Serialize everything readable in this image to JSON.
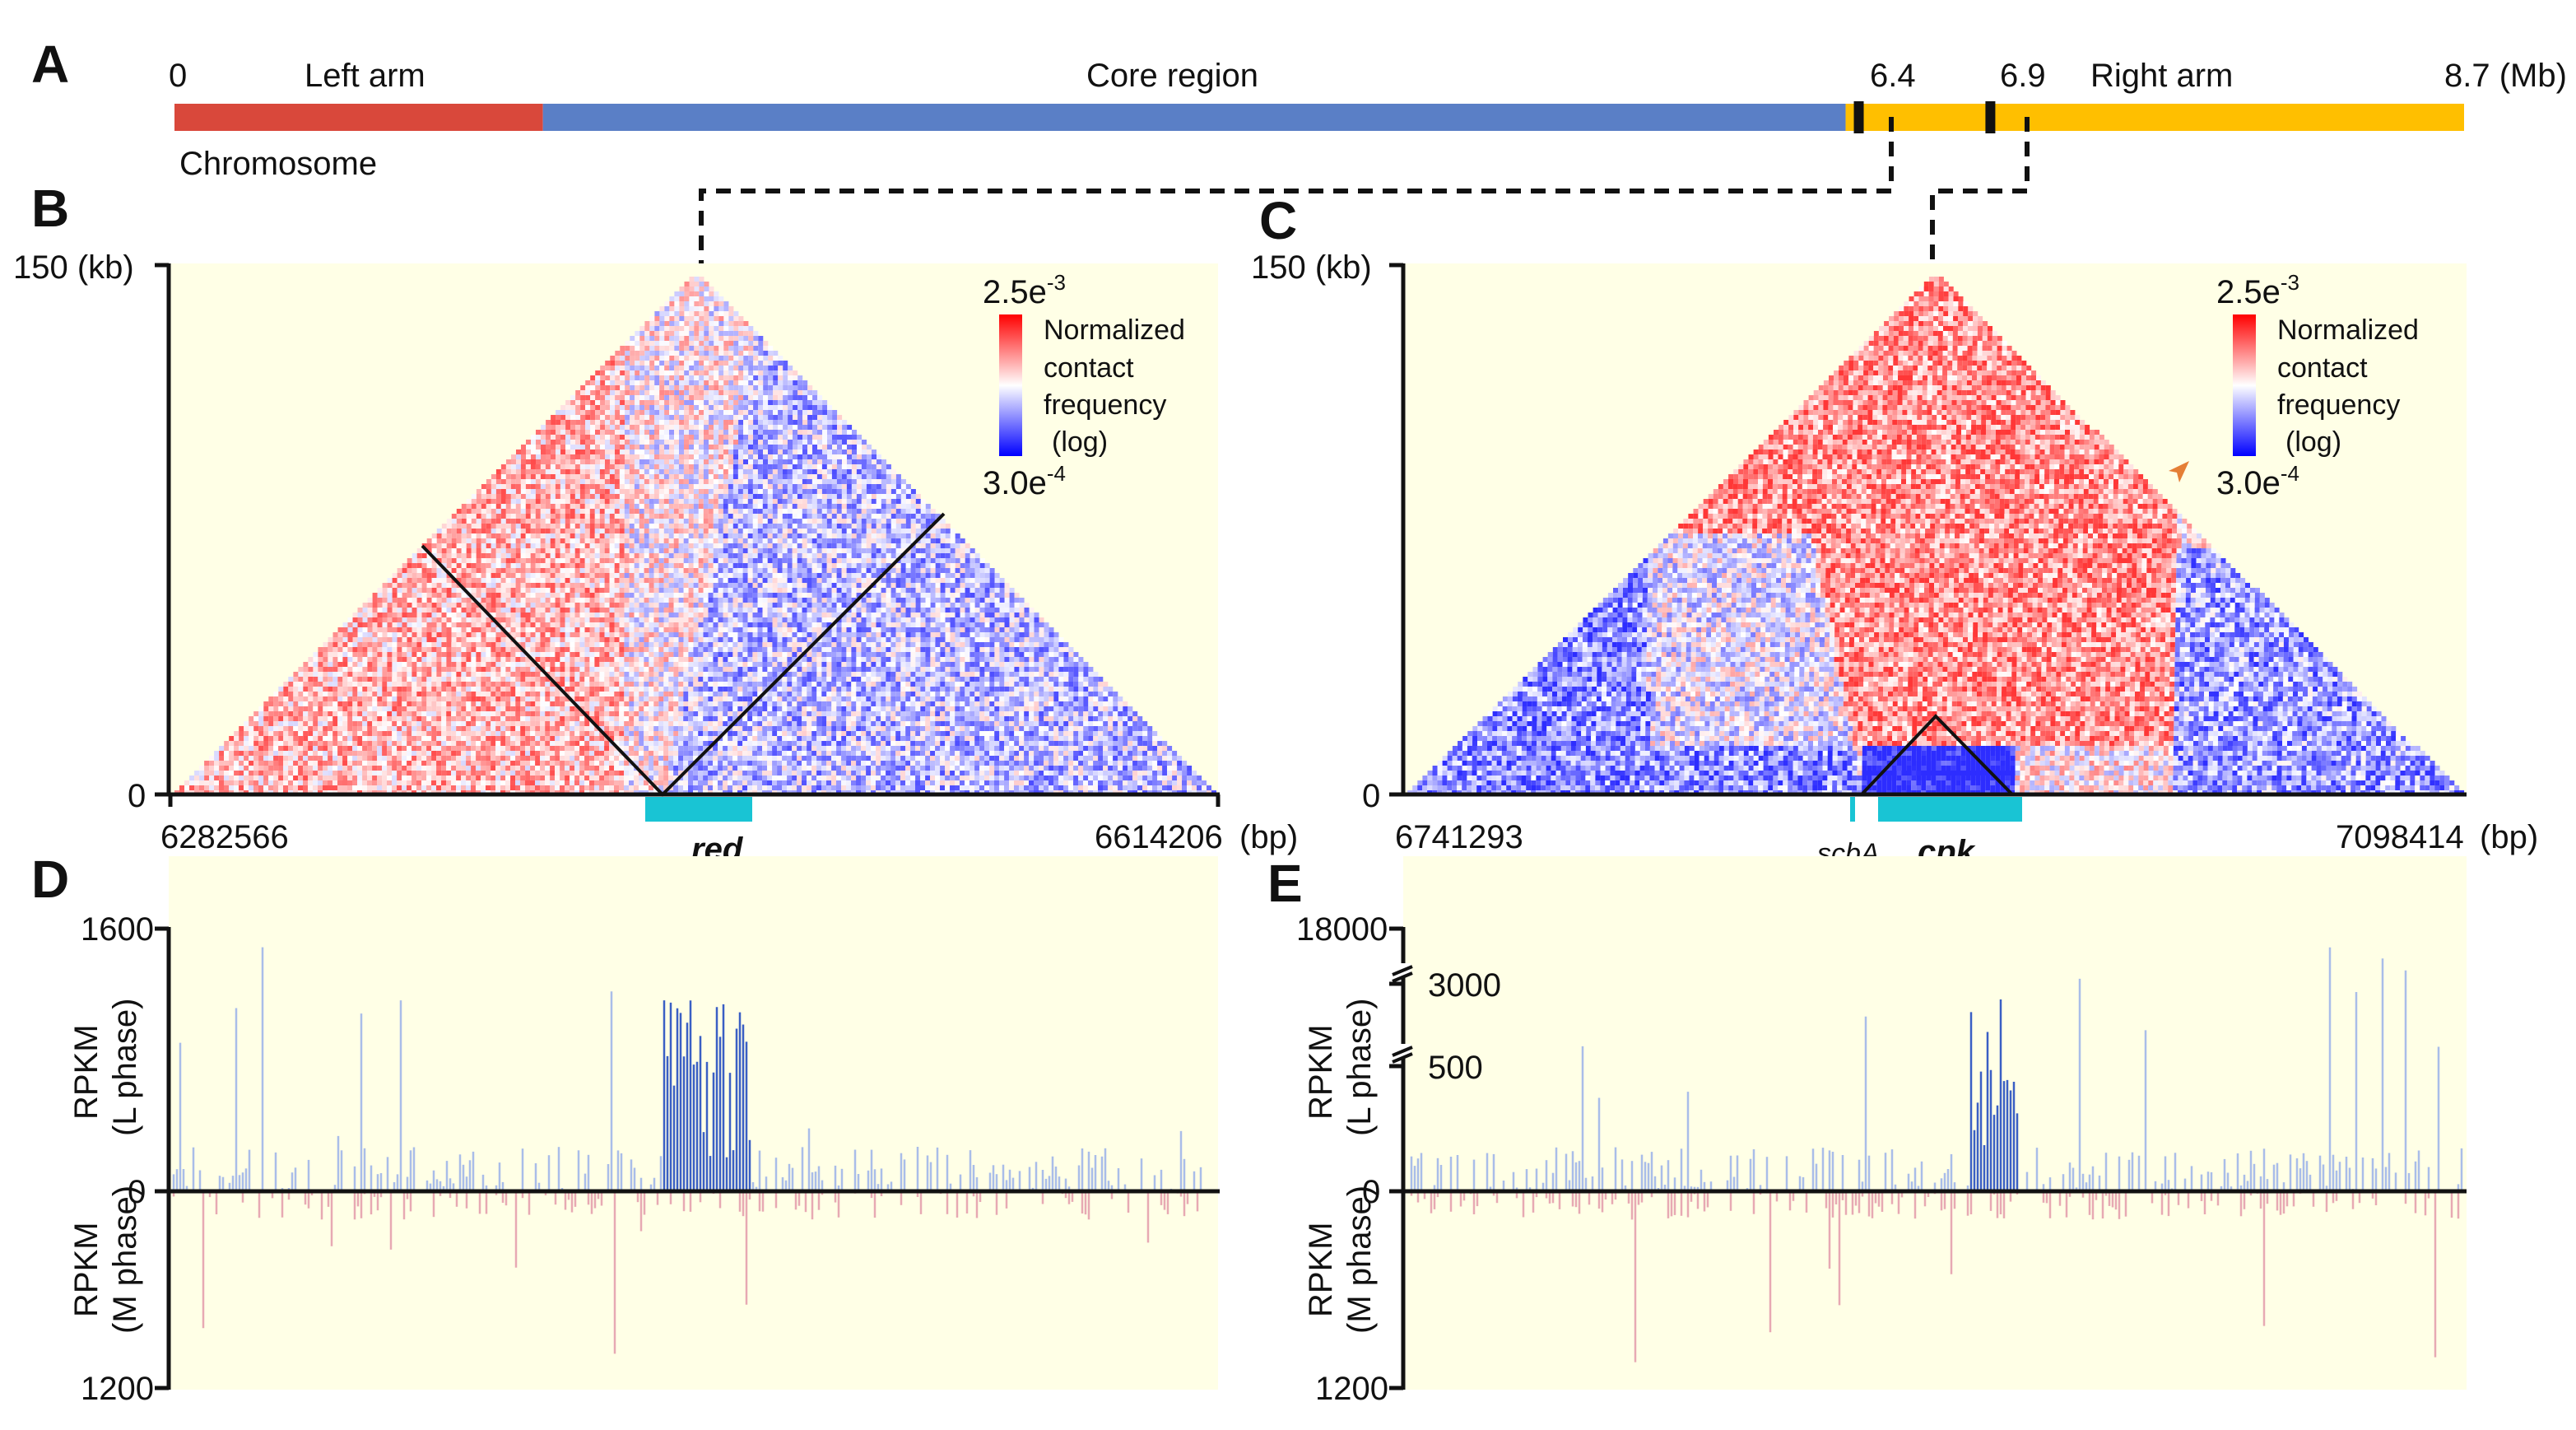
{
  "panel_labels": {
    "a": "A",
    "b": "B",
    "c": "C",
    "d": "D",
    "e": "E"
  },
  "chromosome": {
    "caption": "Chromosome",
    "segments": [
      {
        "name": "Left arm",
        "start_mb": 0,
        "end_mb": 1.4,
        "color": "#d9483b"
      },
      {
        "name": "Core region",
        "start_mb": 1.4,
        "end_mb": 6.35,
        "color": "#5a7fc6"
      },
      {
        "name": "Right arm",
        "start_mb": 6.35,
        "end_mb": 8.7,
        "color": "#ffbf00"
      }
    ],
    "tick_labels": {
      "start": "0",
      "m1": "6.4",
      "m2": "6.9",
      "end": "8.7 (Mb)"
    },
    "markers_mb": [
      6.4,
      6.9
    ],
    "max_mb": 8.7
  },
  "colors": {
    "bg": "#ffffe6",
    "red": "#e8292d",
    "blue": "#2a2ef0",
    "cyan": "#19c4d4",
    "rna_blue": "#3a5fc4",
    "rna_blue_light": "#a9bde9",
    "rna_red_light": "#e7a9b3",
    "rna_red_dark": "#a0303e",
    "arrow": "#e57f36"
  },
  "legend": {
    "max": "2.5e",
    "max_exp": "-3",
    "min": "3.0e",
    "min_exp": "-4",
    "l1": "Normalized",
    "l2": "contact",
    "l3": "frequency",
    "l4": "(log)"
  },
  "panel_b": {
    "y_top": "150 (kb)",
    "y_zero": "0",
    "x_start": "6282566",
    "x_end": "6614206",
    "x_unit": "(bp)",
    "gene": "red"
  },
  "panel_c": {
    "y_top": "150 (kb)",
    "y_zero": "0",
    "x_start": "6741293",
    "x_end": "7098414",
    "x_unit": "(bp)",
    "gene_small": "scbA",
    "gene": "cpk"
  },
  "panel_d": {
    "y_top": "1600",
    "y_zero": "0",
    "y_bottom": "1200",
    "ylabel_top_1": "RPKM",
    "ylabel_top_2": "(L phase)",
    "ylabel_bot_1": "RPKM",
    "ylabel_bot_2": "(M phase)"
  },
  "panel_e": {
    "y_top": "18000",
    "y_mid1": "3000",
    "y_mid2": "500",
    "y_zero": "0",
    "y_bottom": "1200",
    "ylabel_top_1": "RPKM",
    "ylabel_top_2": "(L phase)",
    "ylabel_bot_1": "RPKM",
    "ylabel_bot_2": "(M phase)"
  }
}
